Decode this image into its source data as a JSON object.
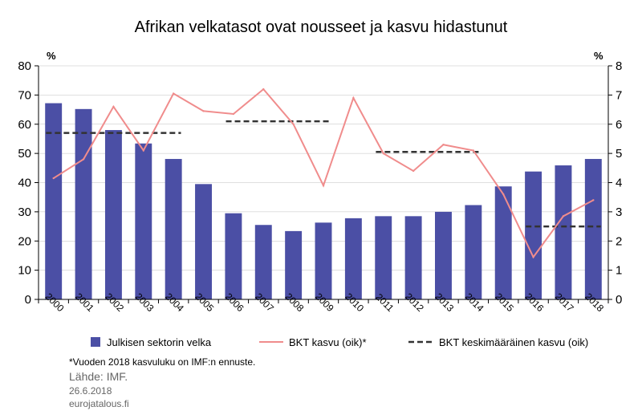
{
  "colors": {
    "bar": "#4B4FA5",
    "gdp_line": "#F08C8C",
    "avg_line": "#333333",
    "axis": "#000000",
    "gridline": "#bfbfbf"
  },
  "footnote": "*Vuoden 2018 kasvuluku on IMF:n ennuste.",
  "source": "Lähde: IMF.",
  "date": "26.6.2018",
  "site": "eurojatalous.fi",
  "chart_data": {
    "type": "bar",
    "title": "Afrikan velkatasot ovat nousseet ja kasvu hidastunut",
    "left_unit": "%",
    "right_unit": "%",
    "ylim": [
      0,
      80
    ],
    "y2lim": [
      0,
      8
    ],
    "yticks": [
      "0",
      "10",
      "20",
      "30",
      "40",
      "50",
      "60",
      "70",
      "80"
    ],
    "y2ticks": [
      "0",
      "1",
      "2",
      "3",
      "4",
      "5",
      "6",
      "7",
      "8"
    ],
    "grid": true,
    "legend_position": "bottom",
    "categories": [
      "2000",
      "2001",
      "2002",
      "2003",
      "2004",
      "2005",
      "2006",
      "2007",
      "2008",
      "2009",
      "2010",
      "2011",
      "2012",
      "2013",
      "2014",
      "2015",
      "2016",
      "2017",
      "2018"
    ],
    "series": [
      {
        "name": "Julkisen sektorin velka",
        "axis": "left",
        "type": "bar",
        "values": [
          67.2,
          65.2,
          58.0,
          53.4,
          48.1,
          39.5,
          29.5,
          25.5,
          23.4,
          26.3,
          27.8,
          28.5,
          28.5,
          30.0,
          32.3,
          38.7,
          43.8,
          45.9,
          48.1
        ]
      },
      {
        "name": "BKT kasvu (oik)*",
        "axis": "right",
        "type": "line",
        "values": [
          4.15,
          4.8,
          6.6,
          5.1,
          7.05,
          6.45,
          6.35,
          7.2,
          6.0,
          3.9,
          6.9,
          5.0,
          4.4,
          5.3,
          5.1,
          3.6,
          1.45,
          2.85,
          3.4
        ]
      },
      {
        "name": "BKT keskimääräinen kasvu (oik)",
        "axis": "right",
        "type": "dashed",
        "segments": [
          {
            "from": "2000",
            "to": "2004",
            "value": 5.7
          },
          {
            "from": "2006",
            "to": "2009",
            "value": 6.1
          },
          {
            "from": "2011",
            "to": "2014",
            "value": 5.05
          },
          {
            "from": "2016",
            "to": "2018",
            "value": 2.5
          }
        ]
      }
    ]
  }
}
